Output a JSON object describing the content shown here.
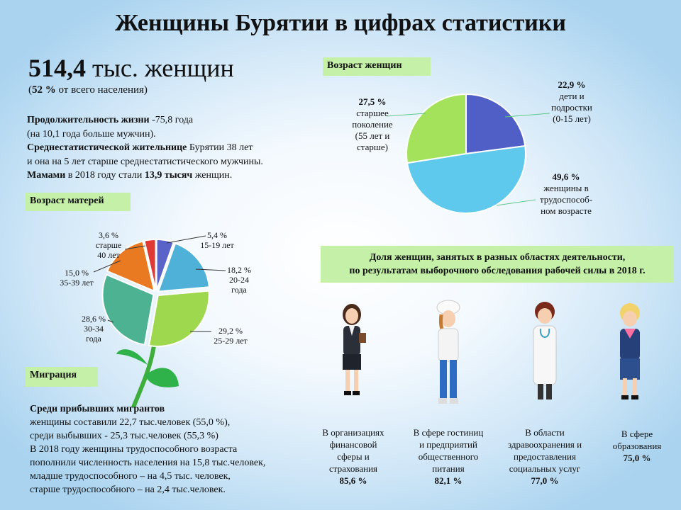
{
  "header": {
    "title": "Женщины Бурятии в цифрах статистики",
    "count_value": "514,4",
    "count_unit": "тыс. женщин",
    "share_value": "52 %",
    "share_text": "от всего населения)"
  },
  "summary": {
    "life_label": "Продолжительность жизни",
    "life_value": "-75,8 года",
    "life_note": "(на 10,1 года больше мужчин).",
    "avg_label": "Среднестатистической жительнице",
    "avg_text": "Бурятии 38 лет",
    "avg_note": "и она на 5 лет старше среднестатистического мужчины.",
    "mothers_label": "Мамами",
    "mothers_text": "в 2018 году стали",
    "mothers_value": "13,9 тысяч",
    "mothers_tail": "женщин."
  },
  "tags": {
    "women_age": "Возраст женщин",
    "mothers_age": "Возраст матерей",
    "migration": "Миграция"
  },
  "chart_data": [
    {
      "type": "pie",
      "title": "Возраст женщин",
      "slices": [
        {
          "value": 22.9,
          "label_pct": "22,9 %",
          "label": [
            "дети и",
            "подростки",
            "(0-15 лет)"
          ],
          "color": "#4f5fc6"
        },
        {
          "value": 49.6,
          "label_pct": "49,6 %",
          "label": [
            "женщины в",
            "трудоспособ-",
            "ном возрасте"
          ],
          "color": "#5ec9ec"
        },
        {
          "value": 27.5,
          "label_pct": "27,5 %",
          "label": [
            "старшее",
            "поколение",
            "(55 лет и",
            "старше)"
          ],
          "color": "#a4e25c"
        }
      ]
    },
    {
      "type": "pie",
      "title": "Возраст матерей",
      "slices": [
        {
          "value": 5.4,
          "label_pct": "5,4 %",
          "label": [
            "15-19 лет"
          ],
          "color": "#5a63c8"
        },
        {
          "value": 18.2,
          "label_pct": "18,2 %",
          "label": [
            "20-24",
            "года"
          ],
          "color": "#4fb0d8"
        },
        {
          "value": 29.2,
          "label_pct": "29,2 %",
          "label": [
            "25-29 лет"
          ],
          "color": "#9ed84f"
        },
        {
          "value": 28.6,
          "label_pct": "28,6 %",
          "label": [
            "30-34",
            "года"
          ],
          "color": "#4cb292"
        },
        {
          "value": 15.0,
          "label_pct": "15,0 %",
          "label": [
            "35-39 лет"
          ],
          "color": "#ea7a22"
        },
        {
          "value": 3.6,
          "label_pct": "3,6 %",
          "label": [
            "старше",
            "40 лет"
          ],
          "color": "#e03a35"
        }
      ]
    }
  ],
  "occupations": {
    "title_line1": "Доля женщин, занятых в разных областях деятельности,",
    "title_line2": "по результатам выборочного обследования рабочей силы в 2018 г.",
    "items": [
      {
        "lines": [
          "В организациях",
          "финансовой",
          "сферы и",
          "страхования"
        ],
        "value": "85,6 %",
        "icon": "businesswoman-icon"
      },
      {
        "lines": [
          "В сфере гостиниц",
          "и предприятий",
          "общественного",
          "питания"
        ],
        "value": "82,1 %",
        "icon": "chef-woman-icon"
      },
      {
        "lines": [
          "В области",
          "здравоохранения и",
          "предоставления",
          "социальных услуг"
        ],
        "value": "77,0 %",
        "icon": "doctor-woman-icon"
      },
      {
        "lines": [
          "В сфере",
          "образования"
        ],
        "value": "75,0 %",
        "icon": "teacher-woman-icon"
      }
    ]
  },
  "migration": {
    "heading": "Среди прибывших мигрантов",
    "l1": "женщины составили 22,7 тыс.человек (55,0 %),",
    "l2": "среди выбывших - 25,3 тыс.человек (55,3 %)",
    "l3": "В 2018 году женщины трудоспособного возраста",
    "l4": "пополнили численность населения на 15,8 тыс.человек,",
    "l5": "младше трудоспособного – на 4,5 тыс. человек,",
    "l6": "старше трудоспособного – на 2,4 тыс.человек."
  }
}
